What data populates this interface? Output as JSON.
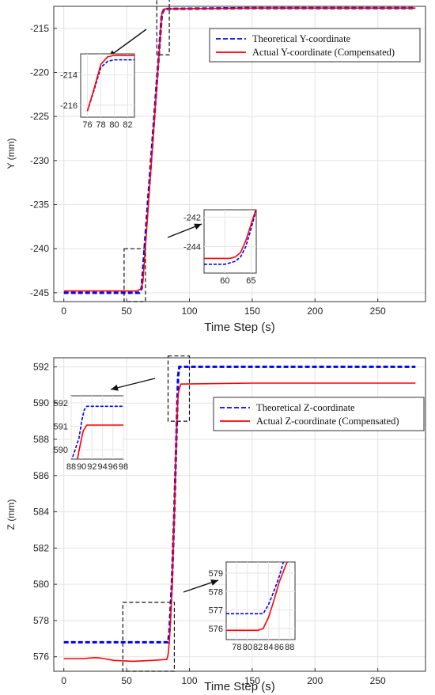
{
  "chart_data": [
    {
      "type": "line",
      "xlabel": "Time Step (s)",
      "ylabel": "Y (mm)",
      "xlim": [
        -8,
        288
      ],
      "ylim": [
        -246,
        -212.5
      ],
      "xticks": [
        0,
        50,
        100,
        150,
        200,
        250
      ],
      "yticks": [
        -215,
        -220,
        -225,
        -230,
        -235,
        -240,
        -245
      ],
      "grid": true,
      "legend_position": "top-right",
      "series": [
        {
          "name": "Theoretical Y-coordinate",
          "color": "#0000ff",
          "style": "dashed",
          "x": [
            0,
            60,
            62,
            78,
            80,
            150,
            280
          ],
          "y": [
            -245,
            -245,
            -244.5,
            -213.4,
            -212.8,
            -212.7,
            -212.7
          ]
        },
        {
          "name": "Actual Y-coordinate (Compensated)",
          "color": "#ff0000",
          "style": "solid",
          "x": [
            0,
            58,
            61,
            63,
            78,
            80,
            150,
            280
          ],
          "y": [
            -244.8,
            -244.8,
            -244.6,
            -243.8,
            -213.4,
            -212.8,
            -212.7,
            -212.7
          ]
        }
      ],
      "annotations": [
        {
          "xrange": [
            48,
            65
          ],
          "yrange": [
            -246,
            -240
          ]
        },
        {
          "xrange": [
            74,
            84
          ],
          "yrange": [
            -218,
            -211.5
          ]
        }
      ],
      "insets": [
        {
          "position": "upper-left",
          "xlim": [
            75,
            83
          ],
          "ylim": [
            -216.8,
            -212.6
          ],
          "xticks": [
            76,
            78,
            80,
            82
          ],
          "yticks": [
            -214,
            -216
          ],
          "series": [
            {
              "x": [
                76,
                77,
                78,
                79,
                80,
                83
              ],
              "y": [
                -216.4,
                -215.0,
                -213.5,
                -213.1,
                -213.0,
                -213.0
              ]
            },
            {
              "x": [
                76,
                77,
                78,
                79,
                80,
                83
              ],
              "y": [
                -216.4,
                -214.9,
                -213.3,
                -212.8,
                -212.7,
                -212.7
              ]
            }
          ]
        },
        {
          "position": "lower-right",
          "xlim": [
            56,
            66
          ],
          "ylim": [
            -245.8,
            -241.5
          ],
          "xticks": [
            60,
            65
          ],
          "yticks": [
            -242,
            -244
          ],
          "series": [
            {
              "x": [
                56,
                60,
                61,
                62,
                63,
                64,
                65,
                66
              ],
              "y": [
                -245.2,
                -245.2,
                -245.1,
                -245.0,
                -244.7,
                -244.0,
                -242.8,
                -241.5
              ]
            },
            {
              "x": [
                56,
                60,
                61,
                62,
                63,
                64,
                65,
                66
              ],
              "y": [
                -244.8,
                -244.8,
                -244.8,
                -244.7,
                -244.4,
                -243.6,
                -242.5,
                -241.4
              ]
            }
          ]
        }
      ]
    },
    {
      "type": "line",
      "xlabel": "Time Step (s)",
      "ylabel": "Z (mm)",
      "xlim": [
        -8,
        288
      ],
      "ylim": [
        575.2,
        592.5
      ],
      "xticks": [
        0,
        50,
        100,
        150,
        200,
        250
      ],
      "yticks": [
        592,
        590,
        588,
        586,
        584,
        582,
        580,
        578,
        576
      ],
      "grid": true,
      "legend_position": "top-right",
      "series": [
        {
          "name": "Theoretical Z-coordinate",
          "color": "#0000ff",
          "style": "dashed",
          "x": [
            0,
            83,
            84,
            86,
            88,
            90,
            91,
            92,
            280
          ],
          "y": [
            576.8,
            576.8,
            577.3,
            580,
            584,
            589,
            591.5,
            592,
            592
          ]
        },
        {
          "name": "Actual Z-coordinate (Compensated)",
          "color": "#ff0000",
          "style": "solid",
          "x": [
            0,
            15,
            25,
            30,
            40,
            55,
            70,
            82,
            83,
            84,
            86,
            88,
            90,
            91,
            93,
            150,
            280
          ],
          "y": [
            575.9,
            575.9,
            575.95,
            575.92,
            575.8,
            575.75,
            575.8,
            575.85,
            576.1,
            576.8,
            579.5,
            584,
            589,
            590.5,
            591.05,
            591.1,
            591.1
          ]
        }
      ],
      "annotations": [
        {
          "xrange": [
            47,
            88
          ],
          "yrange": [
            575.2,
            579
          ]
        },
        {
          "xrange": [
            83,
            100
          ],
          "yrange": [
            589,
            592.6
          ]
        }
      ],
      "insets": [
        {
          "position": "upper-left",
          "xlim": [
            88,
            98
          ],
          "ylim": [
            589.6,
            592.3
          ],
          "xticks": [
            88,
            90,
            92,
            94,
            96,
            98
          ],
          "yticks": [
            592,
            591,
            590
          ],
          "series": [
            {
              "x": [
                88,
                89.5,
                90,
                90.5,
                91,
                98
              ],
              "y": [
                589.5,
                590.5,
                591.2,
                591.7,
                591.85,
                591.85
              ]
            },
            {
              "x": [
                89.2,
                89.8,
                90.3,
                91,
                98
              ],
              "y": [
                589.6,
                590.3,
                590.8,
                591.05,
                591.05
              ]
            }
          ]
        },
        {
          "position": "lower-right",
          "xlim": [
            76,
            89
          ],
          "ylim": [
            575.4,
            579.6
          ],
          "xticks": [
            78,
            80,
            82,
            84,
            86,
            88
          ],
          "yticks": [
            579,
            578,
            577,
            576
          ],
          "series": [
            {
              "x": [
                76,
                83,
                84,
                85,
                86,
                86.8
              ],
              "y": [
                576.8,
                576.8,
                577.3,
                578.0,
                578.8,
                579.6
              ]
            },
            {
              "x": [
                76,
                82,
                83,
                84,
                85,
                86,
                87.5
              ],
              "y": [
                575.9,
                575.9,
                576.0,
                576.6,
                577.5,
                578.5,
                579.6
              ]
            }
          ]
        }
      ]
    }
  ]
}
